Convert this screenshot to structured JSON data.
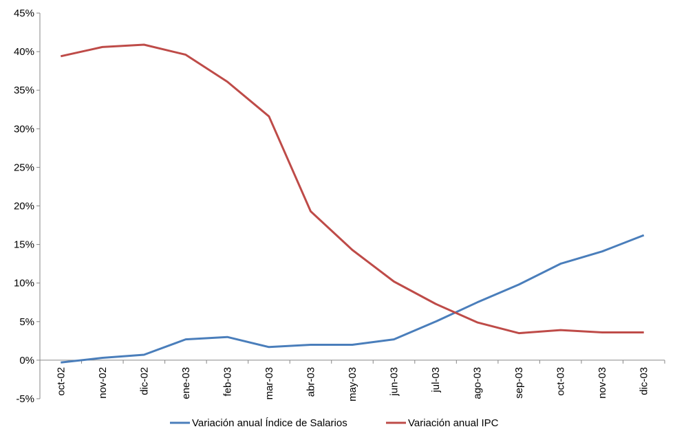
{
  "chart_data": {
    "type": "line",
    "categories": [
      "oct-02",
      "nov-02",
      "dic-02",
      "ene-03",
      "feb-03",
      "mar-03",
      "abr-03",
      "may-03",
      "jun-03",
      "jul-03",
      "ago-03",
      "sep-03",
      "oct-03",
      "nov-03",
      "dic-03"
    ],
    "series": [
      {
        "name": "Variación anual Índice de Salarios",
        "color": "#4a7ebb",
        "values": [
          -0.3,
          0.3,
          0.7,
          2.7,
          3.0,
          1.7,
          2.0,
          2.0,
          2.7,
          5.0,
          7.5,
          9.8,
          12.5,
          14.1,
          16.2
        ]
      },
      {
        "name": "Variación anual IPC",
        "color": "#be4b48",
        "values": [
          39.4,
          40.6,
          40.9,
          39.6,
          36.1,
          31.6,
          19.3,
          14.3,
          10.2,
          7.3,
          4.9,
          3.5,
          3.9,
          3.6,
          3.6
        ]
      }
    ],
    "ylim": [
      -5,
      45
    ],
    "ytick_labels": [
      "-5%",
      "0%",
      "5%",
      "10%",
      "15%",
      "20%",
      "25%",
      "30%",
      "35%",
      "40%",
      "45%"
    ],
    "ytick_values": [
      -5,
      0,
      5,
      10,
      15,
      20,
      25,
      30,
      35,
      40,
      45
    ],
    "grid": false,
    "legend_position": "bottom"
  }
}
